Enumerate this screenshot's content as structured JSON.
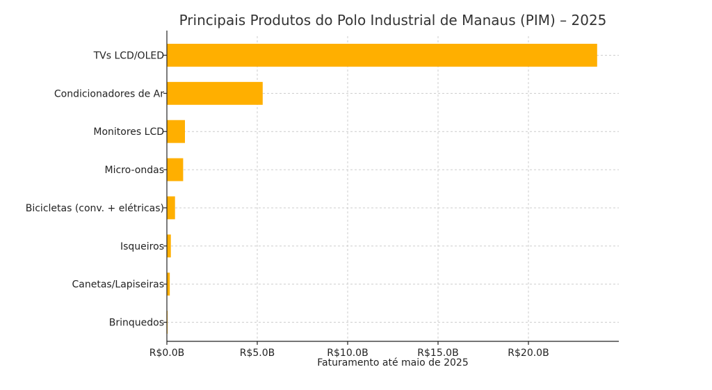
{
  "chart_data": {
    "type": "bar",
    "orientation": "horizontal",
    "title": "Principais Produtos do Polo Industrial de Manaus (PIM) – 2025",
    "xlabel": "Faturamento até maio de 2025",
    "ylabel": "",
    "categories": [
      "TVs LCD/OLED",
      "Condicionadores de Ar",
      "Monitores LCD",
      "Micro-ondas",
      "Bicicletas (conv. + elétricas)",
      "Isqueiros",
      "Canetas/Lapiseiras",
      "Brinquedos"
    ],
    "values": [
      23.8,
      5.3,
      1.0,
      0.9,
      0.45,
      0.22,
      0.16,
      0.03
    ],
    "unit": "bilhões de R$",
    "xlim": [
      0,
      25
    ],
    "xticks": [
      0,
      5,
      10,
      15,
      20
    ],
    "xtick_labels": [
      "R$0.0B",
      "R$5.0B",
      "R$10.0B",
      "R$15.0B",
      "R$20.0B"
    ],
    "grid": true,
    "legend": "none",
    "bar_color": "#FFAF00"
  }
}
